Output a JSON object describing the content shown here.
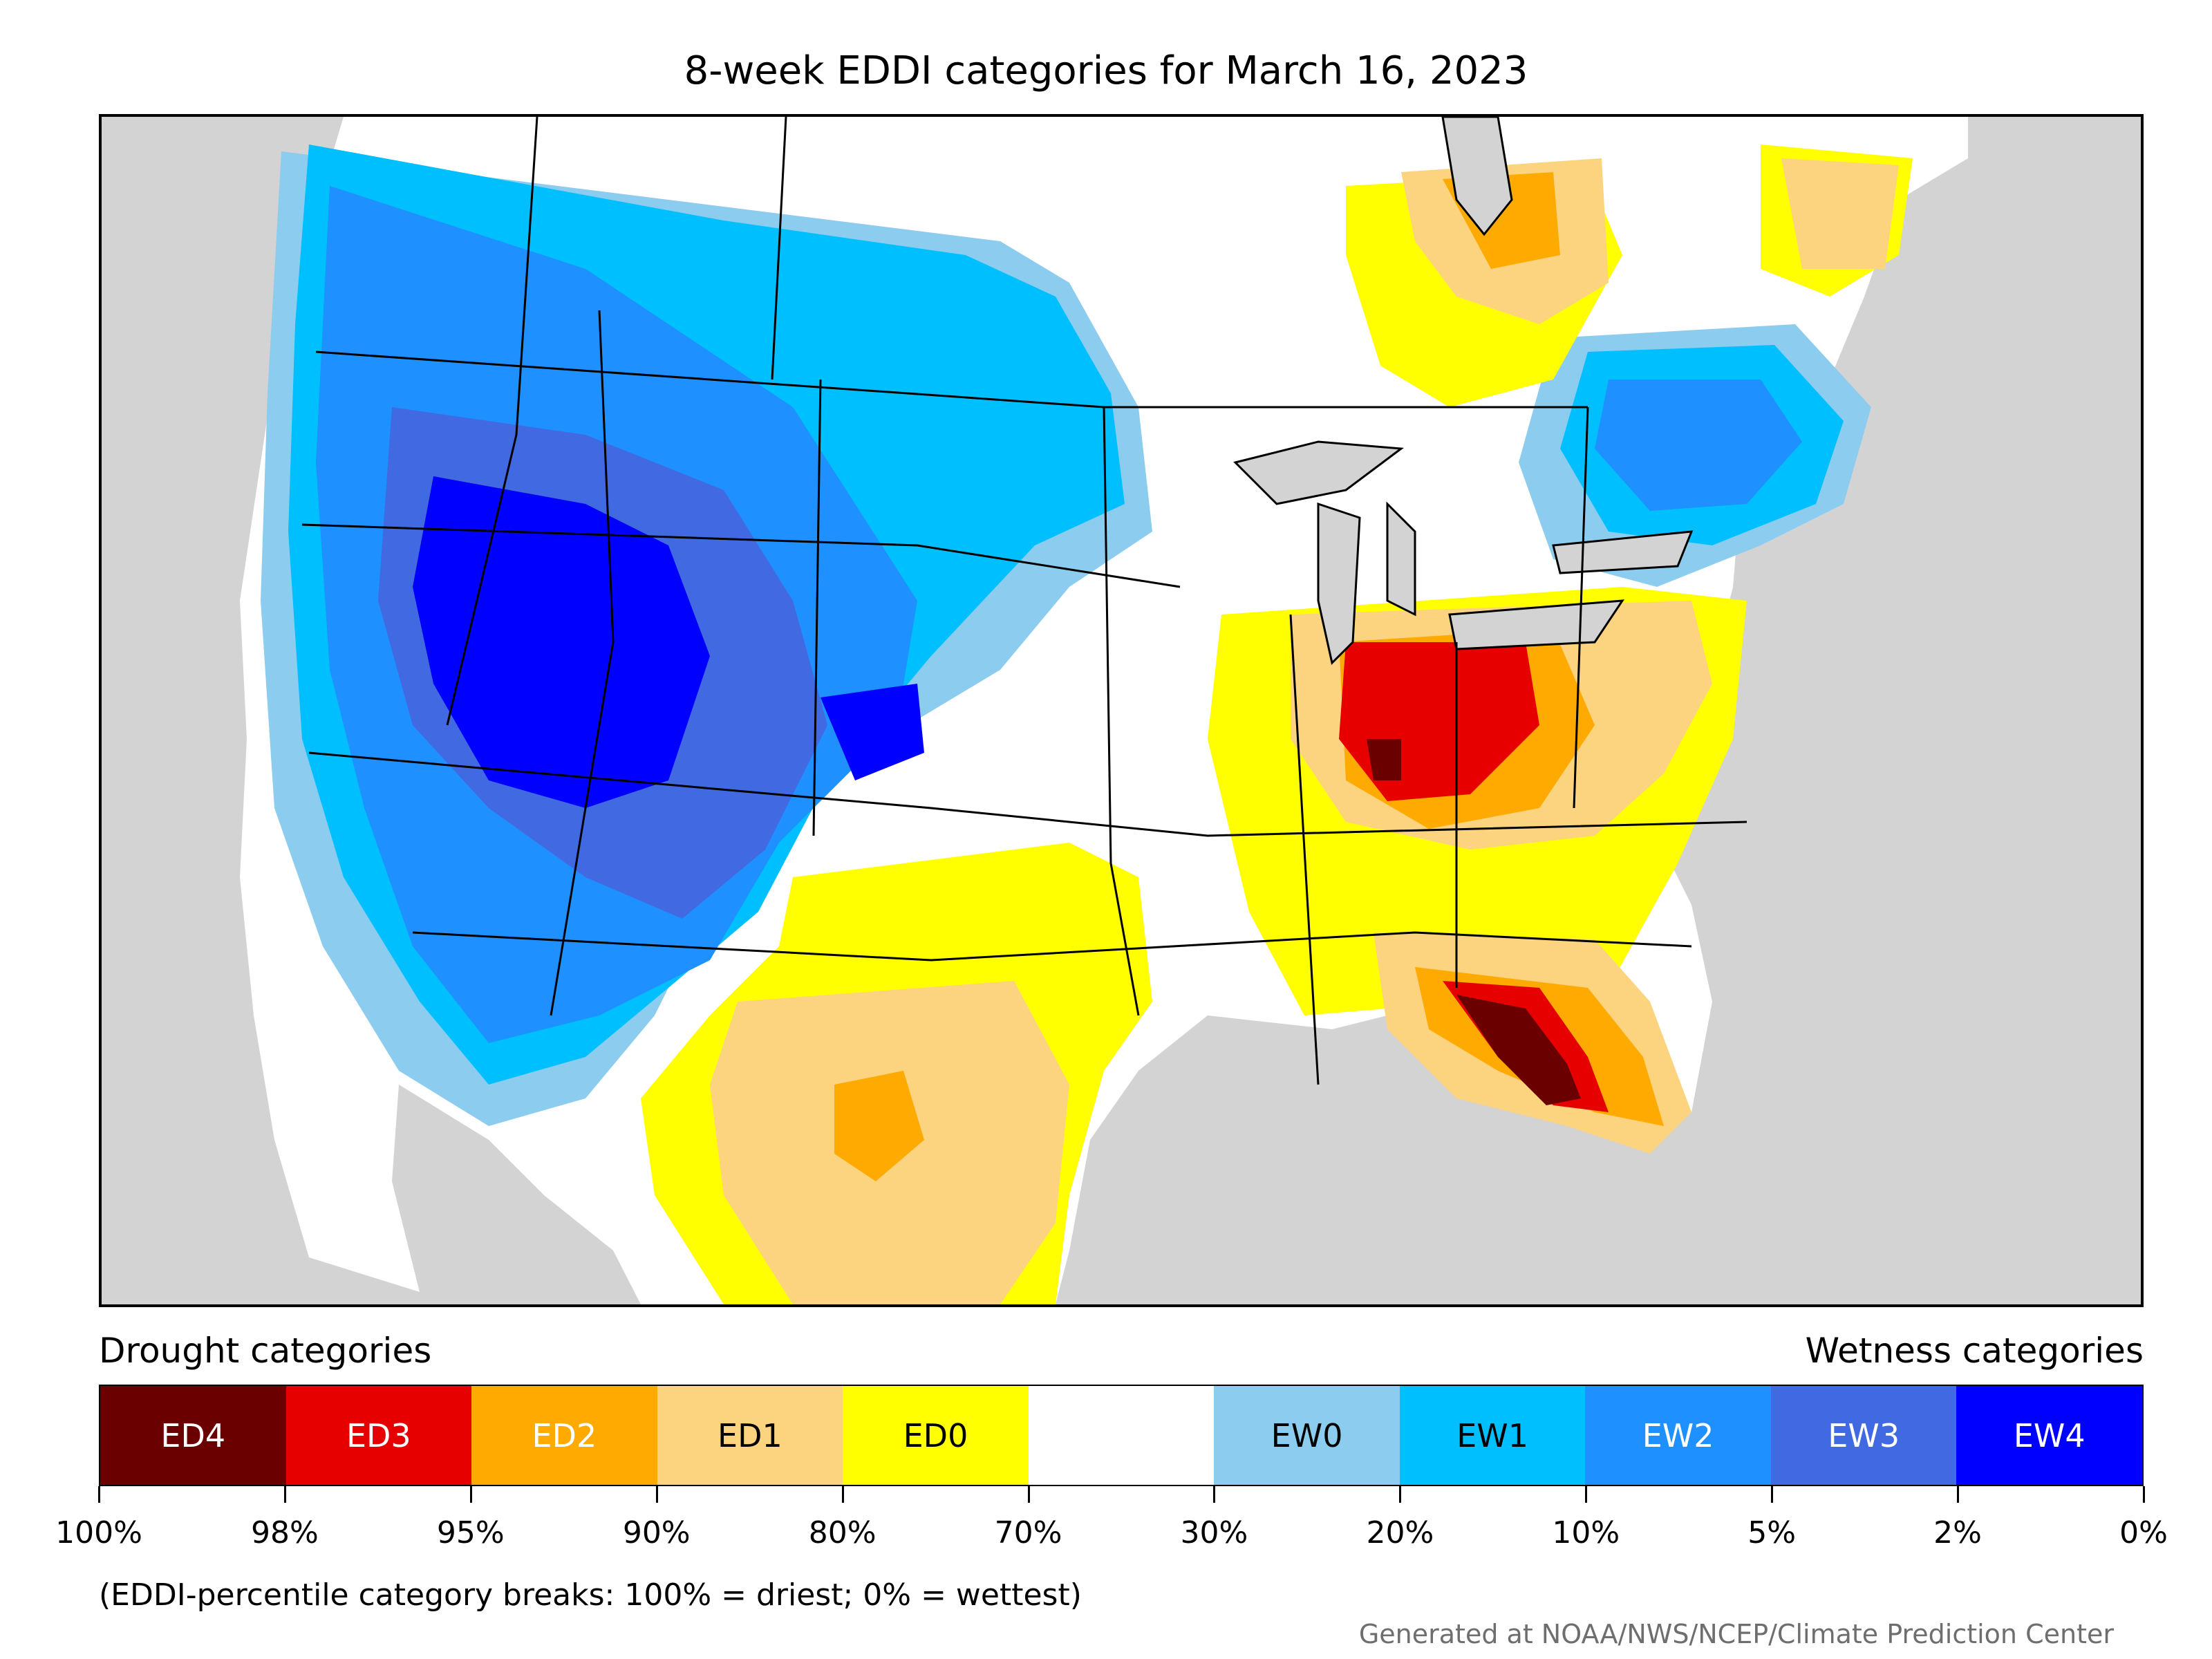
{
  "title": "8-week EDDI categories for March 16, 2023",
  "legend": {
    "left_heading": "Drought categories",
    "right_heading": "Wetness categories",
    "categories": [
      {
        "label": "ED4",
        "color": "#6b0000",
        "text_color": "#ffffff"
      },
      {
        "label": "ED3",
        "color": "#e60000",
        "text_color": "#ffffff"
      },
      {
        "label": "ED2",
        "color": "#ffaa00",
        "text_color": "#ffffff"
      },
      {
        "label": "ED1",
        "color": "#fcd37f",
        "text_color": "#000000"
      },
      {
        "label": "ED0",
        "color": "#ffff00",
        "text_color": "#000000"
      },
      {
        "label": "",
        "color": "#ffffff",
        "text_color": "#000000"
      },
      {
        "label": "EW0",
        "color": "#8ccdef",
        "text_color": "#000000"
      },
      {
        "label": "EW1",
        "color": "#00bfff",
        "text_color": "#000000"
      },
      {
        "label": "EW2",
        "color": "#1e90ff",
        "text_color": "#ffffff"
      },
      {
        "label": "EW3",
        "color": "#4169e1",
        "text_color": "#ffffff"
      },
      {
        "label": "EW4",
        "color": "#0000ff",
        "text_color": "#ffffff"
      }
    ],
    "tick_labels": [
      "100%",
      "98%",
      "95%",
      "90%",
      "80%",
      "70%",
      "30%",
      "20%",
      "10%",
      "5%",
      "2%",
      "0%"
    ]
  },
  "footnote": "(EDDI-percentile category breaks: 100% = driest; 0% = wettest)",
  "credit": "Generated at NOAA/NWS/NCEP/Climate Prediction Center",
  "map": {
    "background_color": "#d3d3d3",
    "no_category_color": "#ffffff"
  }
}
